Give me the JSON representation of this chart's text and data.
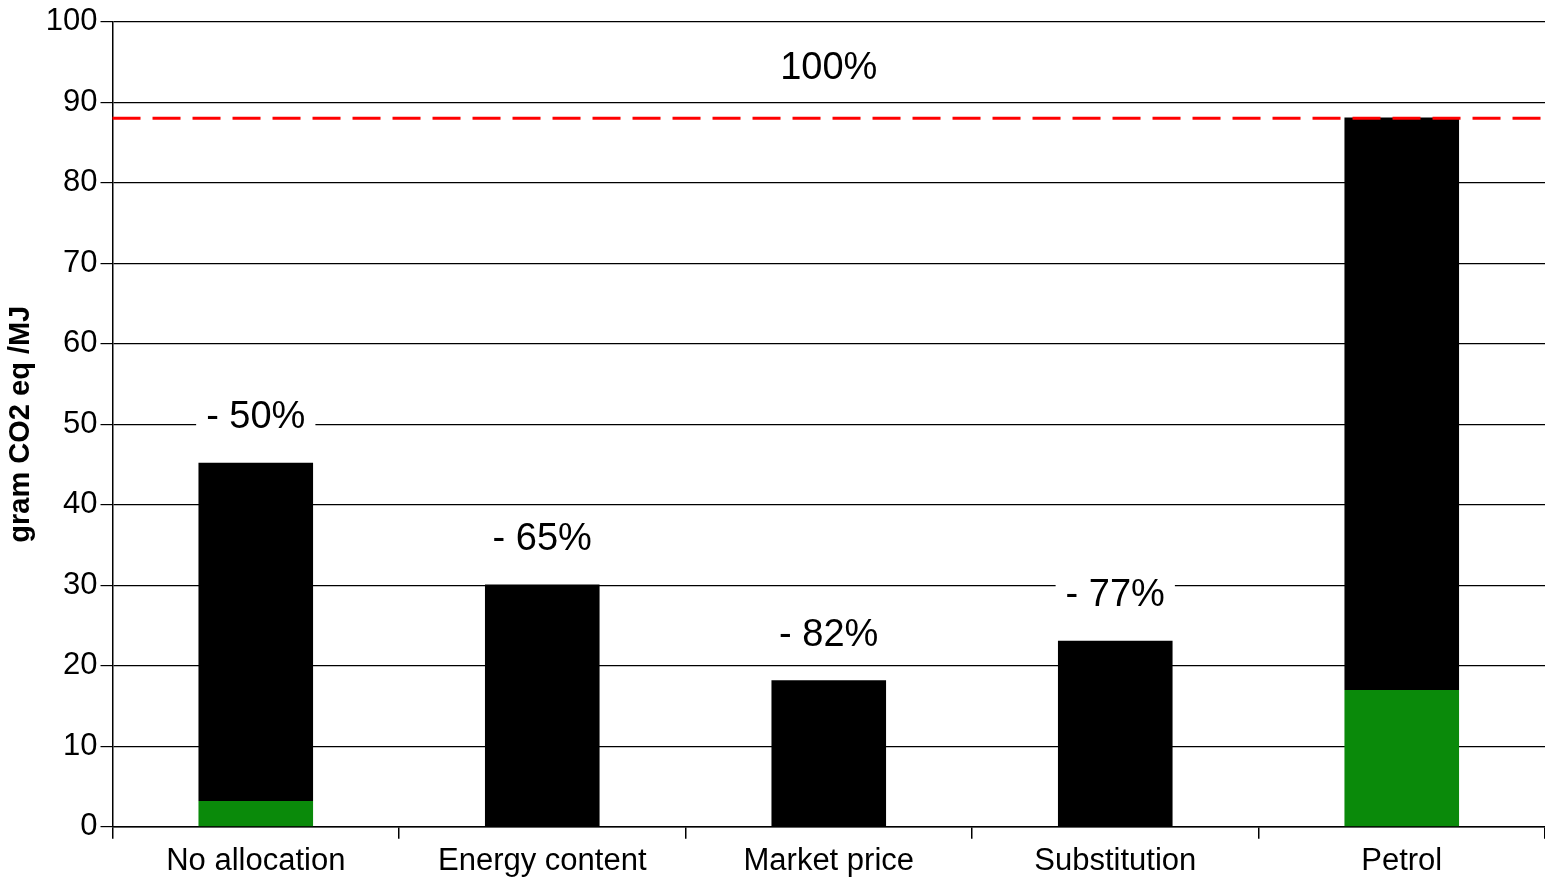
{
  "chart_data": {
    "type": "bar",
    "stacked": true,
    "ylabel": "gram CO2 eq /MJ",
    "categories": [
      "No allocation",
      "Energy content",
      "Market price",
      "Substitution",
      "Petrol"
    ],
    "series": [
      {
        "color": "#0a8a0a",
        "values": [
          3.2,
          0,
          0,
          0,
          17
        ]
      },
      {
        "color": "#000000",
        "values": [
          42,
          30.1,
          18.2,
          23.1,
          71.1
        ]
      }
    ],
    "ylim": [
      0,
      100
    ],
    "yticks": [
      0,
      10,
      20,
      30,
      40,
      50,
      60,
      70,
      80,
      90,
      100
    ],
    "grid": "y",
    "legend": false,
    "ref_lines": [
      {
        "axis": "y",
        "value": 88,
        "color": "#ff0000",
        "line_style": "dashed"
      }
    ],
    "annotations": [
      "100%",
      "- 50%",
      "- 65%",
      "- 82%",
      "- 77%"
    ]
  }
}
